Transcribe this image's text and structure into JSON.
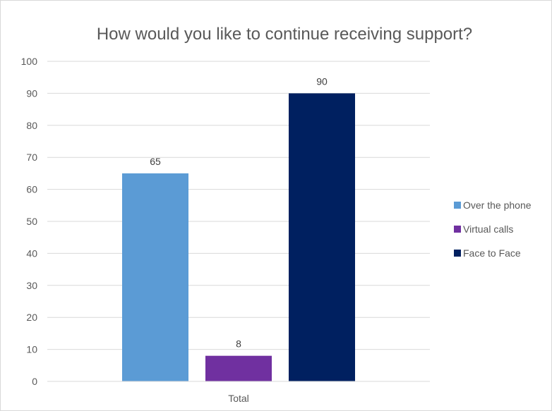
{
  "chart_data": {
    "type": "bar",
    "title": "How would you like to continue receiving support?",
    "categories": [
      "Total"
    ],
    "series": [
      {
        "name": "Over the phone",
        "values": [
          65
        ],
        "color": "#5b9bd5"
      },
      {
        "name": "Virtual calls",
        "values": [
          8
        ],
        "color": "#7030a0"
      },
      {
        "name": "Face to Face",
        "values": [
          90
        ],
        "color": "#002060"
      }
    ],
    "ylim": [
      0,
      100
    ],
    "yticks": [
      0,
      10,
      20,
      30,
      40,
      50,
      60,
      70,
      80,
      90,
      100
    ],
    "grid": true,
    "legend_position": "right",
    "data_labels": true,
    "gridline_color": "#d9d9d9",
    "axis_color": "#d9d9d9",
    "text_color": "#595959"
  }
}
